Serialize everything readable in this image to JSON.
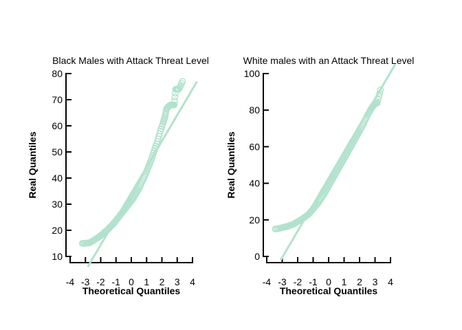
{
  "chart_data": [
    {
      "type": "scatter",
      "title": "Black Males with Attack Threat Level",
      "xlabel": "Theoretical Quantiles",
      "ylabel": "Real Quantiles",
      "xlim": [
        -4,
        4
      ],
      "ylim": [
        10,
        80
      ],
      "xticks": [
        "-4",
        "-3",
        "-2",
        "-1",
        "0",
        "1",
        "2",
        "3",
        "4"
      ],
      "yticks": [
        "10",
        "20",
        "30",
        "40",
        "50",
        "60",
        "70",
        "80"
      ],
      "point_color": "#b2e2cd",
      "line_color": "#b2e2cd",
      "reference_line": {
        "x": [
          -2.85,
          4.3
        ],
        "y": [
          6,
          77
        ]
      },
      "points": [
        [
          -3.2,
          15
        ],
        [
          -2.9,
          15.1
        ],
        [
          -2.7,
          15.3
        ],
        [
          -2.5,
          16
        ],
        [
          -2.3,
          16.8
        ],
        [
          -2.1,
          17.5
        ],
        [
          -1.9,
          18.5
        ],
        [
          -1.7,
          19.5
        ],
        [
          -1.5,
          20.5
        ],
        [
          -1.3,
          21.8
        ],
        [
          -1.1,
          23
        ],
        [
          -0.9,
          24.5
        ],
        [
          -0.7,
          26
        ],
        [
          -0.5,
          27.5
        ],
        [
          -0.3,
          29
        ],
        [
          -0.1,
          30.5
        ],
        [
          0.1,
          32
        ],
        [
          0.3,
          34
        ],
        [
          0.5,
          36
        ],
        [
          0.7,
          38.5
        ],
        [
          0.9,
          41
        ],
        [
          1.1,
          44
        ],
        [
          1.3,
          47
        ],
        [
          1.5,
          50.5
        ],
        [
          1.7,
          54
        ],
        [
          1.9,
          58
        ],
        [
          2.1,
          61.5
        ],
        [
          2.2,
          63.5
        ],
        [
          2.3,
          66.5
        ],
        [
          2.5,
          67.8
        ],
        [
          2.6,
          68
        ],
        [
          2.8,
          68
        ],
        [
          2.9,
          74
        ],
        [
          3.1,
          74
        ],
        [
          3.35,
          77
        ]
      ]
    },
    {
      "type": "scatter",
      "title": "White males with an Attack Threat Level",
      "xlabel": "Theoretical Quantiles",
      "ylabel": "Real Quantiles",
      "xlim": [
        -4,
        4
      ],
      "ylim": [
        0,
        100
      ],
      "xticks": [
        "-4",
        "-3",
        "-2",
        "-1",
        "0",
        "1",
        "2",
        "3",
        "4"
      ],
      "yticks": [
        "0",
        "20",
        "40",
        "60",
        "80",
        "100"
      ],
      "point_color": "#b2e2cd",
      "line_color": "#b2e2cd",
      "reference_line": {
        "x": [
          -3.1,
          4.3
        ],
        "y": [
          -2,
          105
        ]
      },
      "points": [
        [
          -3.45,
          15
        ],
        [
          -3.1,
          15.5
        ],
        [
          -2.9,
          16
        ],
        [
          -2.7,
          16.3
        ],
        [
          -2.5,
          17
        ],
        [
          -2.3,
          17.5
        ],
        [
          -2.1,
          18.5
        ],
        [
          -1.9,
          19.5
        ],
        [
          -1.7,
          20.5
        ],
        [
          -1.5,
          21.8
        ],
        [
          -1.3,
          23
        ],
        [
          -1.1,
          25
        ],
        [
          -0.9,
          27
        ],
        [
          -0.7,
          29
        ],
        [
          -0.5,
          31.5
        ],
        [
          -0.3,
          34
        ],
        [
          -0.1,
          37
        ],
        [
          0.1,
          40
        ],
        [
          0.3,
          43
        ],
        [
          0.5,
          46
        ],
        [
          0.7,
          49
        ],
        [
          0.9,
          52
        ],
        [
          1.1,
          55
        ],
        [
          1.3,
          58
        ],
        [
          1.5,
          61
        ],
        [
          1.7,
          64
        ],
        [
          1.9,
          67
        ],
        [
          2.1,
          70
        ],
        [
          2.3,
          73.5
        ],
        [
          2.5,
          77
        ],
        [
          2.7,
          80
        ],
        [
          2.85,
          82
        ],
        [
          3.0,
          83.5
        ],
        [
          3.15,
          84
        ],
        [
          3.35,
          91
        ]
      ]
    }
  ]
}
